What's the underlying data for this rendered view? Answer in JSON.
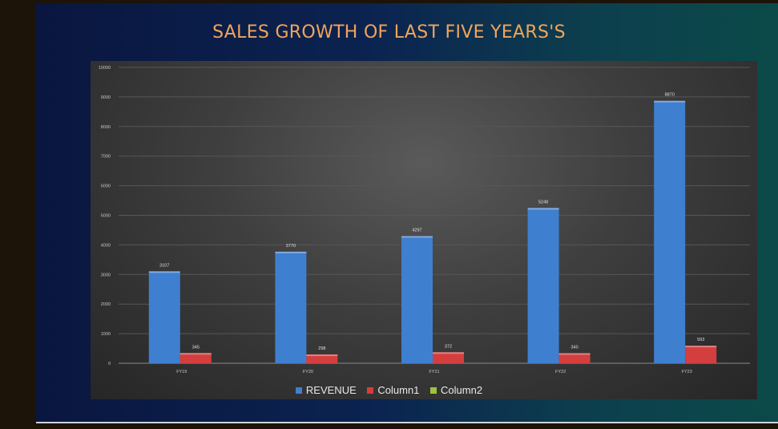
{
  "chart_data": {
    "type": "bar",
    "title": "SALES GROWTH OF LAST FIVE YEARS'S",
    "categories": [
      "FY19",
      "FY20",
      "FY21",
      "FY22",
      "FY23"
    ],
    "series": [
      {
        "name": "REVENUE",
        "values": [
          3107,
          3770,
          4297,
          5248,
          8870
        ],
        "color": "#3f7fd0"
      },
      {
        "name": "Column1",
        "values": [
          345,
          298,
          372,
          340,
          593
        ],
        "color": "#d53e3e"
      },
      {
        "name": "Column2",
        "values": [
          null,
          null,
          null,
          null,
          null
        ],
        "color": "#9ac43a"
      }
    ],
    "ylim": [
      0,
      10000
    ],
    "yticks": [
      0,
      1000,
      2000,
      3000,
      4000,
      5000,
      6000,
      7000,
      8000,
      9000,
      10000
    ],
    "grid": true,
    "legend_position": "bottom"
  }
}
